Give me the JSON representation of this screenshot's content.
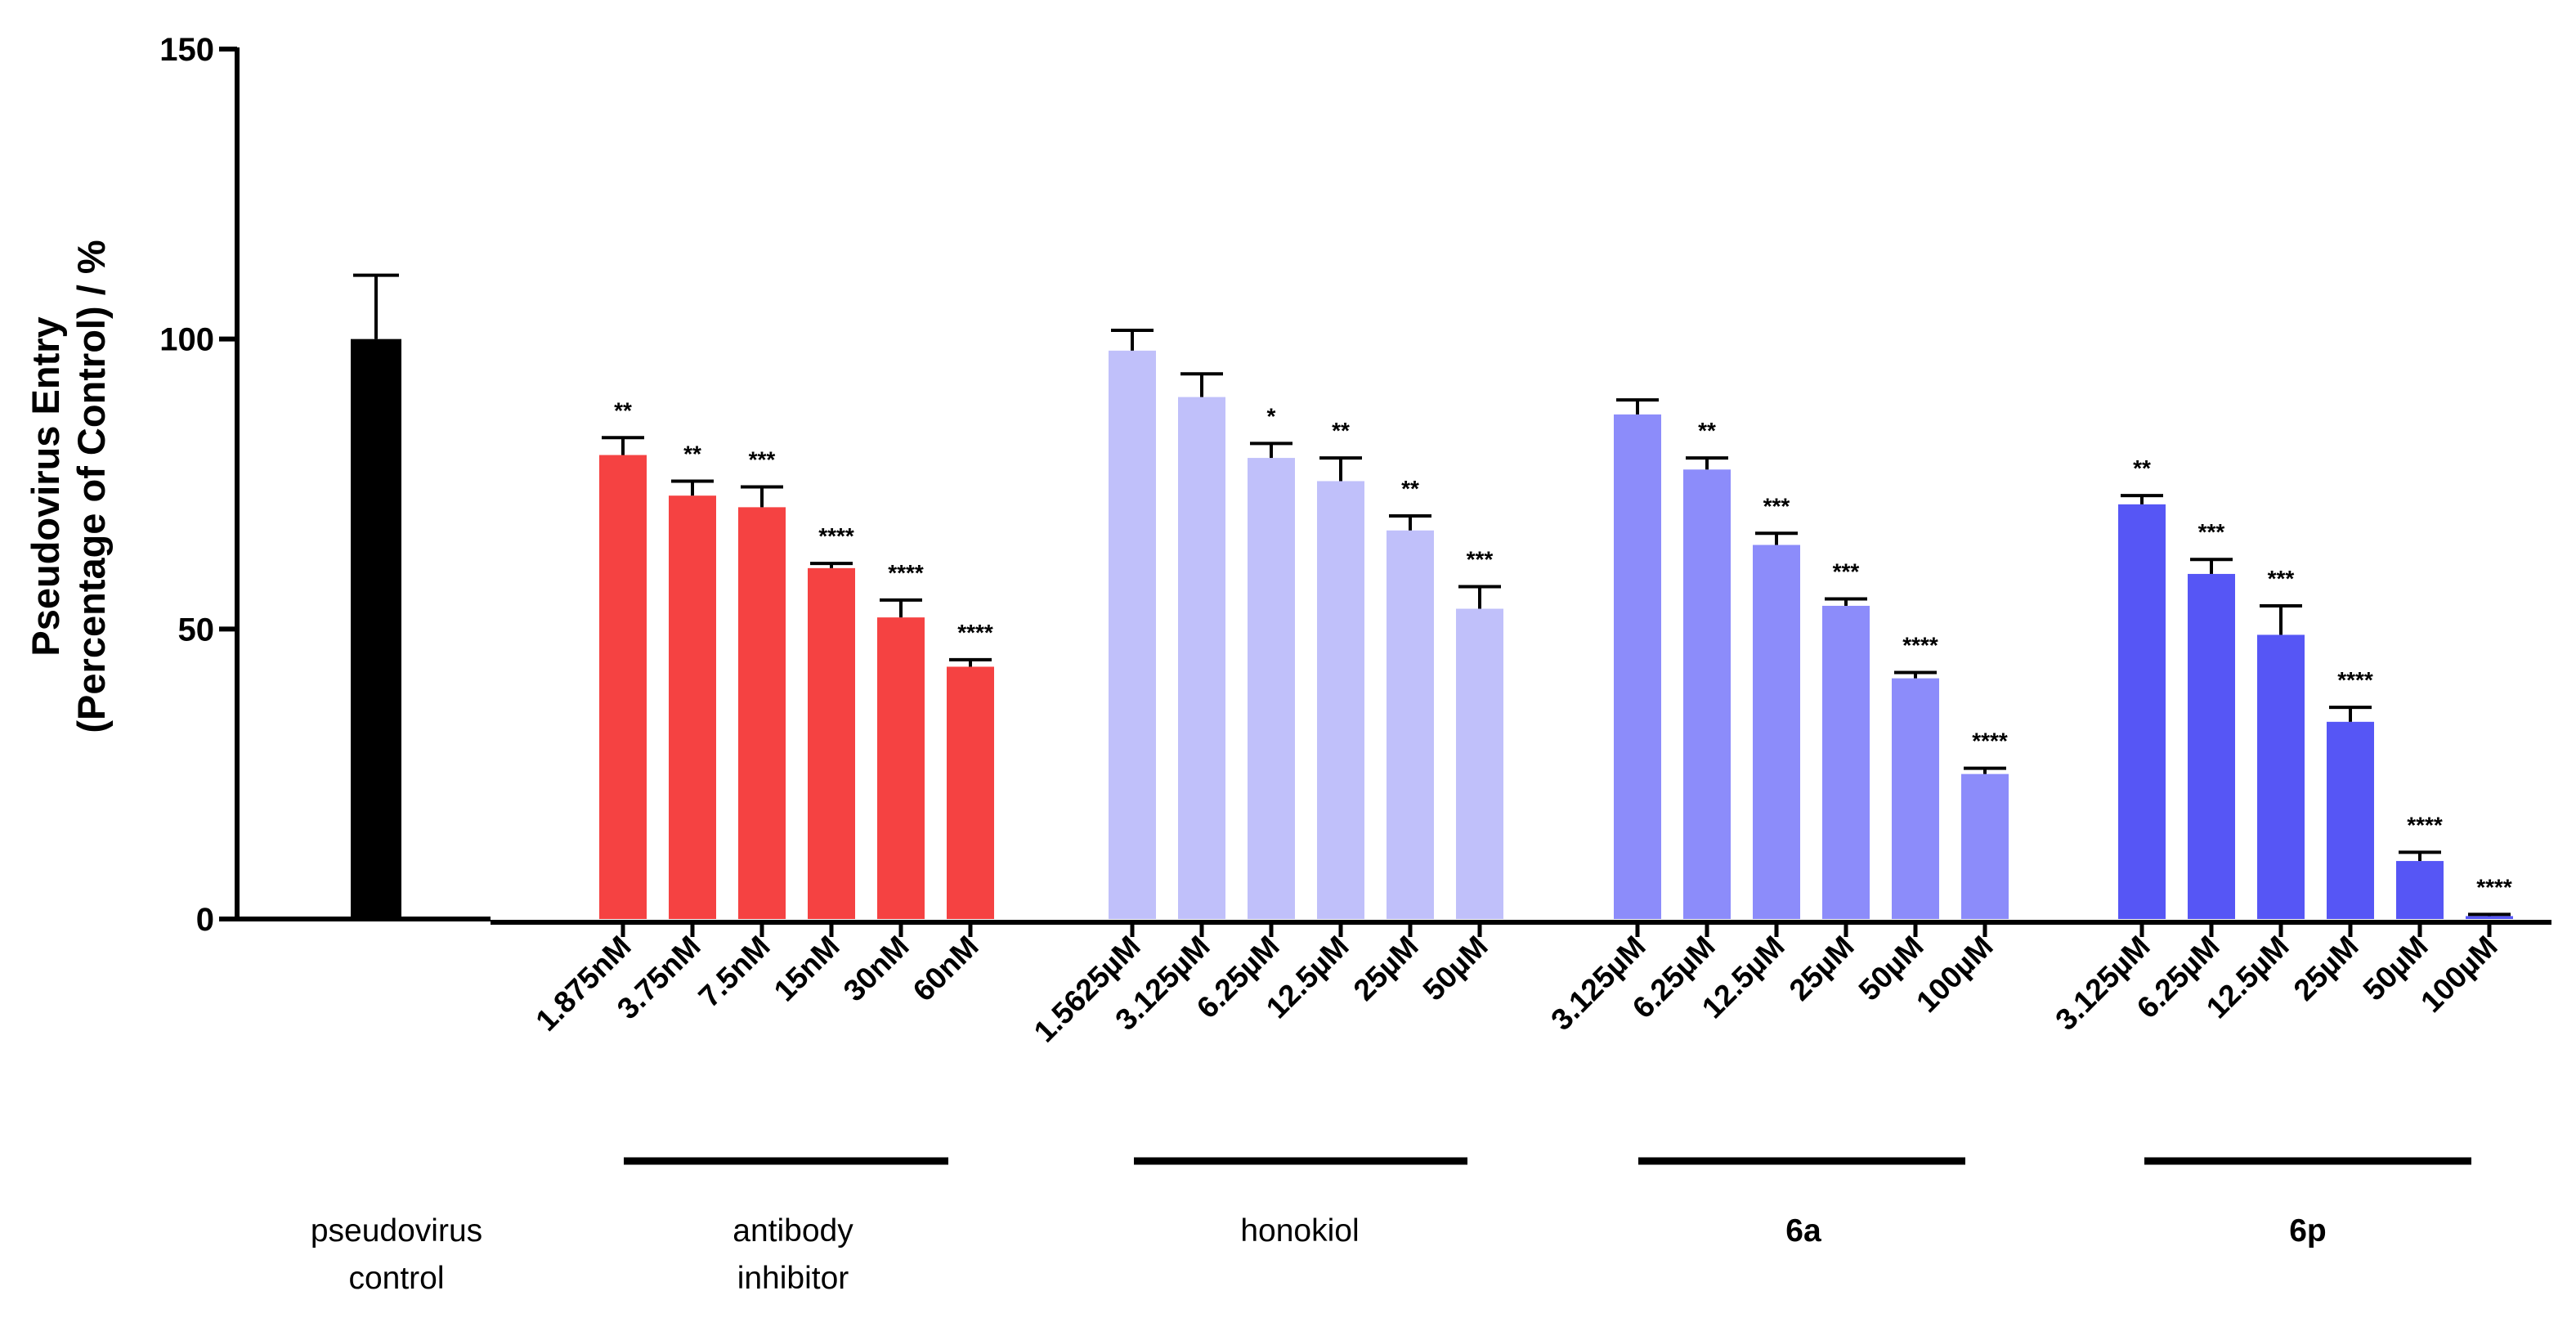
{
  "chart_data": {
    "type": "bar",
    "title": "",
    "xlabel": "",
    "ylabel_line1": "Pseudovirus Entry",
    "ylabel_line2": "(Percentage of Control) / %",
    "ylim": [
      0,
      150
    ],
    "yticks": [
      0,
      50,
      100,
      150
    ],
    "groups": [
      {
        "name_lines": [
          "pseudovirus",
          "control"
        ],
        "bold": false,
        "color": "#000000",
        "bars": [
          {
            "label": "",
            "value": 100,
            "error": 11,
            "sig": ""
          }
        ]
      },
      {
        "name_lines": [
          "antibody",
          "inhibitor"
        ],
        "bold": false,
        "color": "#f54242",
        "bars": [
          {
            "label": "1.875nM",
            "value": 80,
            "error": 3,
            "sig": "**"
          },
          {
            "label": "3.75nM",
            "value": 73,
            "error": 2.5,
            "sig": "**"
          },
          {
            "label": "7.5nM",
            "value": 71,
            "error": 3.5,
            "sig": "***"
          },
          {
            "label": "15nM",
            "value": 60.5,
            "error": 0.8,
            "sig": "****"
          },
          {
            "label": "30nM",
            "value": 52,
            "error": 3,
            "sig": "****"
          },
          {
            "label": "60nM",
            "value": 43.5,
            "error": 1.2,
            "sig": "****"
          }
        ]
      },
      {
        "name_lines": [
          "honokiol"
        ],
        "bold": false,
        "color": "#c0c0fa",
        "bars": [
          {
            "label": "1.5625µM",
            "value": 98,
            "error": 3.5,
            "sig": ""
          },
          {
            "label": "3.125µM",
            "value": 90,
            "error": 4,
            "sig": ""
          },
          {
            "label": "6.25µM",
            "value": 79.5,
            "error": 2.5,
            "sig": "*"
          },
          {
            "label": "12.5µM",
            "value": 75.5,
            "error": 4,
            "sig": "**"
          },
          {
            "label": "25µM",
            "value": 67,
            "error": 2.5,
            "sig": "**"
          },
          {
            "label": "50µM",
            "value": 53.5,
            "error": 3.8,
            "sig": "***"
          }
        ]
      },
      {
        "name_lines": [
          "6a"
        ],
        "bold": true,
        "color": "#8c8cfa",
        "bars": [
          {
            "label": "3.125µM",
            "value": 87,
            "error": 2.5,
            "sig": ""
          },
          {
            "label": "6.25µM",
            "value": 77.5,
            "error": 2,
            "sig": "**"
          },
          {
            "label": "12.5µM",
            "value": 64.5,
            "error": 2,
            "sig": "***"
          },
          {
            "label": "25µM",
            "value": 54,
            "error": 1.2,
            "sig": "***"
          },
          {
            "label": "50µM",
            "value": 41.5,
            "error": 1,
            "sig": "****"
          },
          {
            "label": "100µM",
            "value": 25,
            "error": 1,
            "sig": "****"
          }
        ]
      },
      {
        "name_lines": [
          "6p"
        ],
        "bold": true,
        "color": "#5656f5",
        "bars": [
          {
            "label": "3.125µM",
            "value": 71.5,
            "error": 1.5,
            "sig": "**"
          },
          {
            "label": "6.25µM",
            "value": 59.5,
            "error": 2.5,
            "sig": "***"
          },
          {
            "label": "12.5µM",
            "value": 49,
            "error": 5,
            "sig": "***"
          },
          {
            "label": "25µM",
            "value": 34,
            "error": 2.5,
            "sig": "****"
          },
          {
            "label": "50µM",
            "value": 10,
            "error": 1.5,
            "sig": "****"
          },
          {
            "label": "100µM",
            "value": 0.5,
            "error": 0.3,
            "sig": "****"
          }
        ]
      }
    ]
  }
}
